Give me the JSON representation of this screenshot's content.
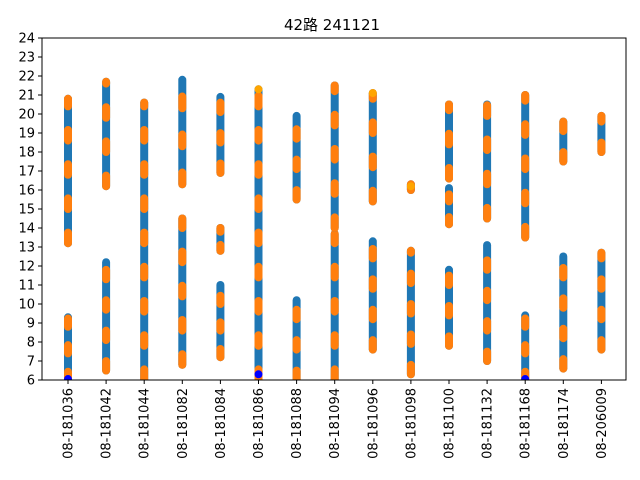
{
  "chart_data": {
    "type": "scatter",
    "title": "42路  241121",
    "xlabel": "",
    "ylabel": "",
    "ylim": [
      6,
      24
    ],
    "yticks": [
      6,
      7,
      8,
      9,
      10,
      11,
      12,
      13,
      14,
      15,
      16,
      17,
      18,
      19,
      20,
      21,
      22,
      23,
      24
    ],
    "categories": [
      "08-181036",
      "08-181042",
      "08-181044",
      "08-181082",
      "08-181084",
      "08-181086",
      "08-181088",
      "08-181094",
      "08-181096",
      "08-181098",
      "08-181100",
      "08-181132",
      "08-181168",
      "08-181174",
      "08-206009"
    ],
    "colors": {
      "blue": "#1f77b4",
      "orange": "#ff7f0e",
      "marker_blue": "#0000ff",
      "gold": "#ffa500"
    },
    "grid": false,
    "legend": "none",
    "segments": [
      {
        "cat": 0,
        "y0": 6.0,
        "y1": 9.3,
        "alt": 0.7
      },
      {
        "cat": 0,
        "y0": 13.2,
        "y1": 20.8,
        "alt": 0.9
      },
      {
        "cat": 1,
        "y0": 6.5,
        "y1": 12.2,
        "alt": 0.8
      },
      {
        "cat": 1,
        "y0": 16.2,
        "y1": 21.7,
        "alt": 0.9
      },
      {
        "cat": 2,
        "y0": 6.0,
        "y1": 20.6,
        "alt": 0.9
      },
      {
        "cat": 3,
        "y0": 6.8,
        "y1": 14.5,
        "alt": 0.9
      },
      {
        "cat": 3,
        "y0": 16.3,
        "y1": 21.8,
        "alt": 1.0
      },
      {
        "cat": 4,
        "y0": 7.2,
        "y1": 11.0,
        "alt": 0.7
      },
      {
        "cat": 4,
        "y0": 12.8,
        "y1": 14.0,
        "alt": 0.5
      },
      {
        "cat": 4,
        "y0": 16.9,
        "y1": 20.9,
        "alt": 0.8
      },
      {
        "cat": 5,
        "y0": 6.0,
        "y1": 21.3,
        "alt": 0.9
      },
      {
        "cat": 6,
        "y0": 6.0,
        "y1": 10.2,
        "alt": 0.8
      },
      {
        "cat": 6,
        "y0": 15.5,
        "y1": 19.9,
        "alt": 0.8
      },
      {
        "cat": 7,
        "y0": 6.0,
        "y1": 13.7,
        "alt": 0.9
      },
      {
        "cat": 7,
        "y0": 14.0,
        "y1": 21.5,
        "alt": 0.9
      },
      {
        "cat": 8,
        "y0": 7.6,
        "y1": 13.3,
        "alt": 0.8
      },
      {
        "cat": 8,
        "y0": 15.4,
        "y1": 21.1,
        "alt": 0.9
      },
      {
        "cat": 9,
        "y0": 6.3,
        "y1": 12.8,
        "alt": 0.8
      },
      {
        "cat": 9,
        "y0": 16.0,
        "y1": 16.3,
        "alt": 1.0
      },
      {
        "cat": 10,
        "y0": 7.8,
        "y1": 11.8,
        "alt": 0.8
      },
      {
        "cat": 10,
        "y0": 14.2,
        "y1": 16.1,
        "alt": 0.6
      },
      {
        "cat": 10,
        "y0": 16.6,
        "y1": 20.5,
        "alt": 0.9
      },
      {
        "cat": 11,
        "y0": 7.0,
        "y1": 13.1,
        "alt": 0.8
      },
      {
        "cat": 11,
        "y0": 14.5,
        "y1": 20.5,
        "alt": 0.9
      },
      {
        "cat": 12,
        "y0": 6.0,
        "y1": 9.4,
        "alt": 0.7
      },
      {
        "cat": 12,
        "y0": 13.5,
        "y1": 21.0,
        "alt": 0.9
      },
      {
        "cat": 13,
        "y0": 6.6,
        "y1": 12.5,
        "alt": 0.8
      },
      {
        "cat": 13,
        "y0": 17.5,
        "y1": 19.6,
        "alt": 0.8
      },
      {
        "cat": 14,
        "y0": 7.6,
        "y1": 12.7,
        "alt": 0.8
      },
      {
        "cat": 14,
        "y0": 18.0,
        "y1": 19.9,
        "alt": 0.8
      }
    ],
    "highlights": [
      {
        "cat": 0,
        "y": 6.05,
        "color": "marker_blue"
      },
      {
        "cat": 5,
        "y": 6.3,
        "color": "marker_blue"
      },
      {
        "cat": 12,
        "y": 6.05,
        "color": "marker_blue"
      },
      {
        "cat": 5,
        "y": 21.3,
        "color": "gold"
      },
      {
        "cat": 8,
        "y": 21.1,
        "color": "gold"
      },
      {
        "cat": 9,
        "y": 16.2,
        "color": "gold"
      }
    ]
  }
}
